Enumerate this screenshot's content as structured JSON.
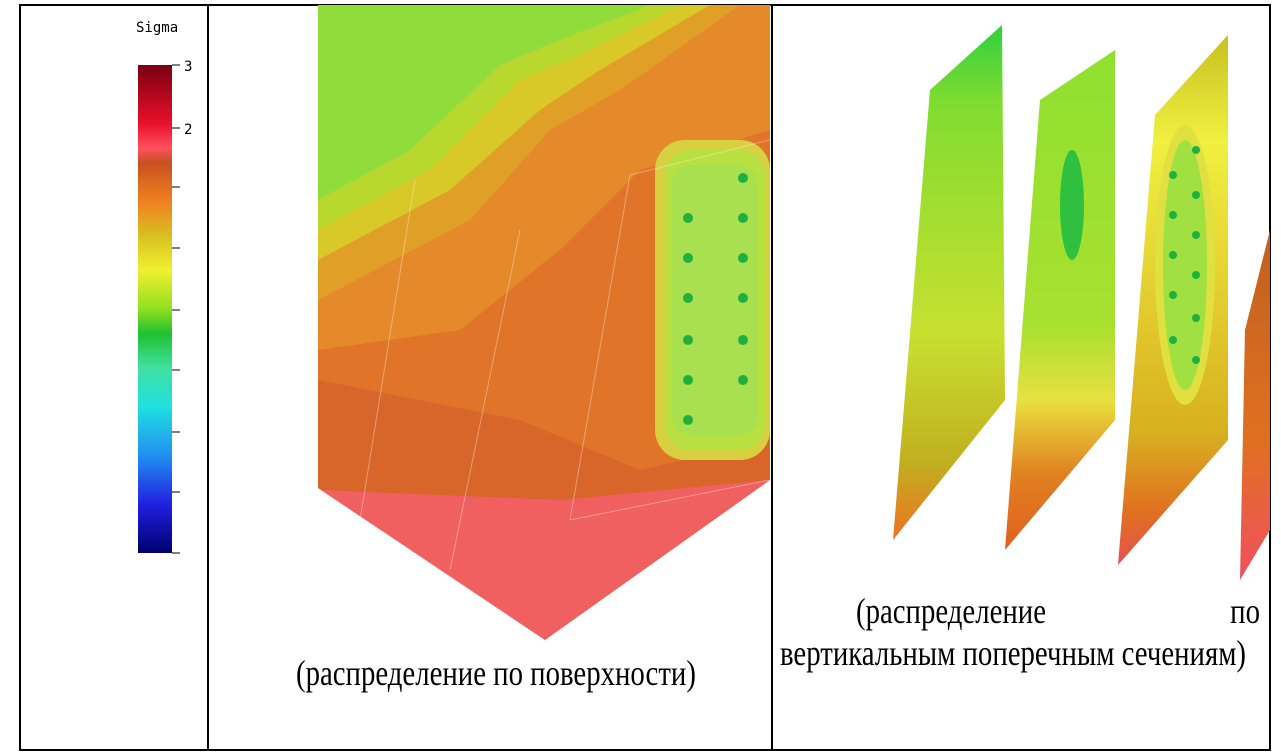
{
  "legend": {
    "title": "Sigma",
    "ticks": [
      {
        "value": 3,
        "label": "3"
      },
      {
        "value": 2,
        "label": "2"
      }
    ]
  },
  "captions": {
    "surface": "(распределение по поверхности)",
    "sections": "(распределение по вертикальным поперечным сечениям)"
  }
}
